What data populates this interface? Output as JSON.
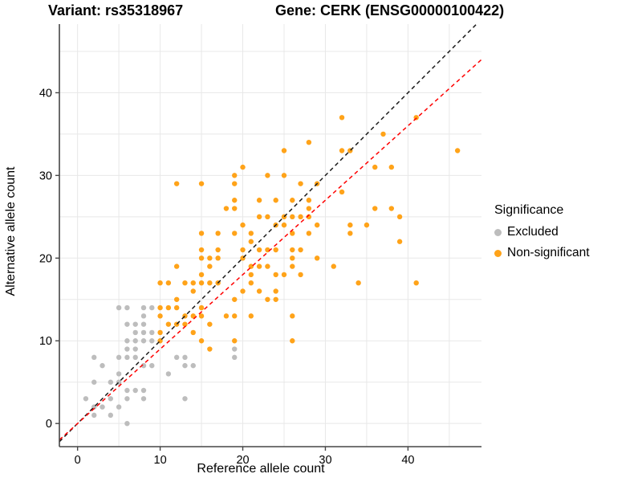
{
  "titles": {
    "variant": "Variant: rs35318967",
    "gene": "Gene: CERK (ENSG00000100422)"
  },
  "legend": {
    "title": "Significance",
    "items": [
      {
        "label": "Excluded",
        "color": "#BDBDBD"
      },
      {
        "label": "Non-significant",
        "color": "#FFA319"
      }
    ]
  },
  "colors": {
    "grid": "#E8E8E8",
    "axis": "#464646",
    "identity_line": "#1A1A1A",
    "fit_line": "#FF0000",
    "background": "#FFFFFF"
  },
  "chart_data": {
    "type": "scatter",
    "title_left": "Variant: rs35318967",
    "title_right": "Gene: CERK (ENSG00000100422)",
    "xlabel": "Reference allele count",
    "ylabel": "Alternative allele count",
    "x_ticks": [
      0,
      10,
      20,
      30,
      40
    ],
    "y_ticks": [
      0,
      10,
      20,
      30,
      40
    ],
    "grid_step": 5,
    "grid_max": 45,
    "x_range": [
      -2.2,
      48.9
    ],
    "y_range": [
      -2.8,
      48.3
    ],
    "legend_title": "Significance",
    "legend_position": "right",
    "series": [
      {
        "name": "Excluded",
        "color": "#BDBDBD",
        "points": [
          [
            5,
            14
          ],
          [
            6,
            14
          ],
          [
            8,
            14
          ],
          [
            9,
            14
          ],
          [
            8,
            13
          ],
          [
            6,
            12
          ],
          [
            7,
            12
          ],
          [
            8,
            12
          ],
          [
            7,
            11
          ],
          [
            8,
            11
          ],
          [
            9,
            11
          ],
          [
            6,
            10
          ],
          [
            7,
            10
          ],
          [
            8,
            10
          ],
          [
            9,
            10
          ],
          [
            6,
            9
          ],
          [
            7,
            9
          ],
          [
            19,
            9
          ],
          [
            2,
            8
          ],
          [
            5,
            8
          ],
          [
            6,
            8
          ],
          [
            7,
            8
          ],
          [
            12,
            8
          ],
          [
            13,
            8
          ],
          [
            19,
            8
          ],
          [
            3,
            7
          ],
          [
            8,
            7
          ],
          [
            9,
            7
          ],
          [
            13,
            7
          ],
          [
            14,
            7
          ],
          [
            5,
            6
          ],
          [
            11,
            6
          ],
          [
            2,
            5
          ],
          [
            4,
            5
          ],
          [
            5,
            5
          ],
          [
            6,
            4
          ],
          [
            7,
            4
          ],
          [
            8,
            4
          ],
          [
            1,
            3
          ],
          [
            4,
            3
          ],
          [
            6,
            3
          ],
          [
            8,
            3
          ],
          [
            13,
            3
          ],
          [
            2,
            2
          ],
          [
            3,
            2
          ],
          [
            5,
            2
          ],
          [
            2,
            1
          ],
          [
            4,
            1
          ],
          [
            6,
            0
          ]
        ]
      },
      {
        "name": "Non-significant",
        "color": "#FFA319",
        "points": [
          [
            32,
            37
          ],
          [
            41,
            37
          ],
          [
            37,
            35
          ],
          [
            28,
            34
          ],
          [
            25,
            33
          ],
          [
            32,
            33
          ],
          [
            33,
            33
          ],
          [
            46,
            33
          ],
          [
            20,
            31
          ],
          [
            36,
            31
          ],
          [
            38,
            31
          ],
          [
            19,
            30
          ],
          [
            23,
            30
          ],
          [
            25,
            30
          ],
          [
            12,
            29
          ],
          [
            15,
            29
          ],
          [
            19,
            29
          ],
          [
            27,
            29
          ],
          [
            29,
            29
          ],
          [
            32,
            28
          ],
          [
            19,
            27
          ],
          [
            22,
            27
          ],
          [
            24,
            27
          ],
          [
            26,
            27
          ],
          [
            28,
            27
          ],
          [
            18,
            26
          ],
          [
            19,
            26
          ],
          [
            28,
            26
          ],
          [
            36,
            26
          ],
          [
            38,
            26
          ],
          [
            22,
            25
          ],
          [
            23,
            25
          ],
          [
            25,
            25
          ],
          [
            26,
            25
          ],
          [
            27,
            25
          ],
          [
            28,
            25
          ],
          [
            39,
            25
          ],
          [
            20,
            24
          ],
          [
            24,
            24
          ],
          [
            25,
            24
          ],
          [
            29,
            24
          ],
          [
            33,
            24
          ],
          [
            35,
            24
          ],
          [
            15,
            23
          ],
          [
            17,
            23
          ],
          [
            19,
            23
          ],
          [
            21,
            23
          ],
          [
            26,
            23
          ],
          [
            28,
            23
          ],
          [
            33,
            23
          ],
          [
            21,
            22
          ],
          [
            39,
            22
          ],
          [
            15,
            21
          ],
          [
            17,
            21
          ],
          [
            20,
            21
          ],
          [
            22,
            21
          ],
          [
            23,
            21
          ],
          [
            24,
            21
          ],
          [
            26,
            21
          ],
          [
            27,
            21
          ],
          [
            15,
            20
          ],
          [
            16,
            20
          ],
          [
            17,
            20
          ],
          [
            20,
            20
          ],
          [
            26,
            20
          ],
          [
            29,
            20
          ],
          [
            12,
            19
          ],
          [
            16,
            19
          ],
          [
            21,
            19
          ],
          [
            22,
            19
          ],
          [
            23,
            19
          ],
          [
            26,
            19
          ],
          [
            31,
            19
          ],
          [
            15,
            18
          ],
          [
            21,
            18
          ],
          [
            24,
            18
          ],
          [
            25,
            18
          ],
          [
            27,
            18
          ],
          [
            10,
            17
          ],
          [
            11,
            17
          ],
          [
            13,
            17
          ],
          [
            14,
            17
          ],
          [
            15,
            17
          ],
          [
            16,
            17
          ],
          [
            17,
            17
          ],
          [
            21,
            17
          ],
          [
            34,
            17
          ],
          [
            41,
            17
          ],
          [
            14,
            16
          ],
          [
            20,
            16
          ],
          [
            22,
            16
          ],
          [
            24,
            16
          ],
          [
            12,
            15
          ],
          [
            19,
            15
          ],
          [
            23,
            15
          ],
          [
            24,
            15
          ],
          [
            10,
            14
          ],
          [
            11,
            14
          ],
          [
            12,
            14
          ],
          [
            15,
            14
          ],
          [
            10,
            13
          ],
          [
            13,
            13
          ],
          [
            14,
            13
          ],
          [
            15,
            13
          ],
          [
            18,
            13
          ],
          [
            19,
            13
          ],
          [
            21,
            13
          ],
          [
            26,
            13
          ],
          [
            11,
            12
          ],
          [
            12,
            12
          ],
          [
            13,
            12
          ],
          [
            16,
            12
          ],
          [
            10,
            11
          ],
          [
            14,
            11
          ],
          [
            10,
            10
          ],
          [
            15,
            10
          ],
          [
            19,
            10
          ],
          [
            26,
            10
          ],
          [
            16,
            9
          ]
        ]
      }
    ],
    "reference_lines": [
      {
        "name": "identity",
        "slope": 1,
        "intercept": 0,
        "color": "#1A1A1A",
        "dash": "dashed"
      },
      {
        "name": "fit",
        "slope": 0.9,
        "intercept": 0,
        "color": "#FF0000",
        "dash": "dashed"
      }
    ]
  }
}
